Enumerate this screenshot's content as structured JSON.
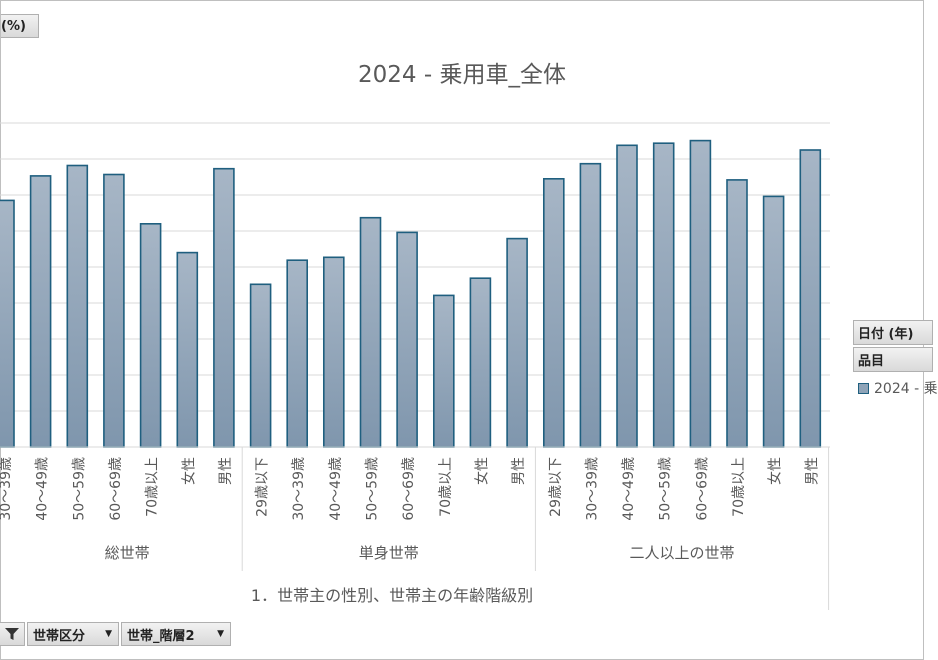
{
  "pivot": {
    "value_field_label": "(%)",
    "legend_date_field": "日付 (年)",
    "legend_item_field": "品目",
    "legend_entry": "2024 - 乗",
    "axis_field_1": "世帯区分",
    "axis_field_2": "世帯_階層2"
  },
  "colors": {
    "bar_fill_top": "#a7b6c6",
    "bar_fill_bottom": "#7f96ad",
    "bar_stroke": "#1f5f7f",
    "grid": "#d9d9d9"
  },
  "chart_data": {
    "type": "bar",
    "title": "2024 - 乗用車_全体",
    "xlabel": "1．世帯主の性別、世帯主の年齢階級別",
    "ylim": [
      0,
      90
    ],
    "grid": true,
    "legend_position": "right",
    "groups": [
      {
        "name": "総世帯",
        "categories": [
          "30～39歳",
          "40～49歳",
          "50～59歳",
          "60～69歳",
          "70歳以上",
          "女性",
          "男性"
        ],
        "values": [
          68.5,
          75.3,
          78.2,
          75.7,
          62.0,
          54.0,
          77.3
        ]
      },
      {
        "name": "単身世帯",
        "categories": [
          "29歳以下",
          "30～39歳",
          "40～49歳",
          "50～59歳",
          "60～69歳",
          "70歳以上",
          "女性",
          "男性"
        ],
        "values": [
          45.2,
          51.9,
          52.7,
          63.7,
          59.6,
          42.1,
          46.9,
          57.9
        ]
      },
      {
        "name": "二人以上の世帯",
        "categories": [
          "29歳以下",
          "30～39歳",
          "40～49歳",
          "50～59歳",
          "60～69歳",
          "70歳以上",
          "女性",
          "男性"
        ],
        "values": [
          74.5,
          78.7,
          83.8,
          84.4,
          85.1,
          74.2,
          69.6,
          82.5
        ]
      }
    ],
    "series": [
      {
        "name": "2024 - 乗"
      }
    ]
  }
}
